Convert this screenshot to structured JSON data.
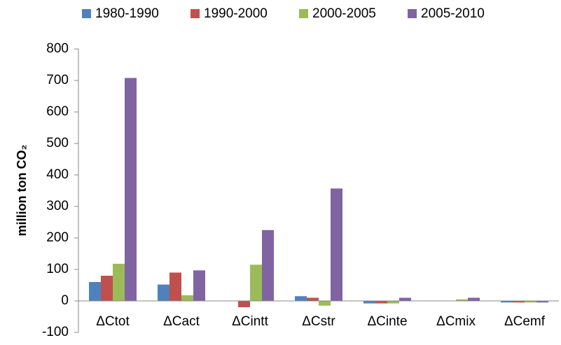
{
  "chart_data": {
    "type": "bar",
    "y_label": "million ton CO₂",
    "categories": [
      "ΔCtot",
      "ΔCact",
      "ΔCintt",
      "ΔCstr",
      "ΔCinte",
      "ΔCmix",
      "ΔCemf"
    ],
    "series": [
      {
        "name": "1980-1990",
        "color": "#4f81bd",
        "values": [
          60,
          52,
          1,
          15,
          -8,
          0,
          -5
        ]
      },
      {
        "name": "1990-2000",
        "color": "#c0504d",
        "values": [
          80,
          90,
          -20,
          10,
          -8,
          0,
          -5
        ]
      },
      {
        "name": "2000-2005",
        "color": "#9bbb59",
        "values": [
          118,
          18,
          115,
          -15,
          -8,
          5,
          -5
        ]
      },
      {
        "name": "2005-2010",
        "color": "#8064a2",
        "values": [
          708,
          97,
          225,
          357,
          10,
          10,
          -5
        ]
      }
    ],
    "ylim": [
      -100,
      800
    ],
    "yticks": [
      -100,
      0,
      100,
      200,
      300,
      400,
      500,
      600,
      700,
      800
    ],
    "grid": false,
    "legend": "top"
  }
}
